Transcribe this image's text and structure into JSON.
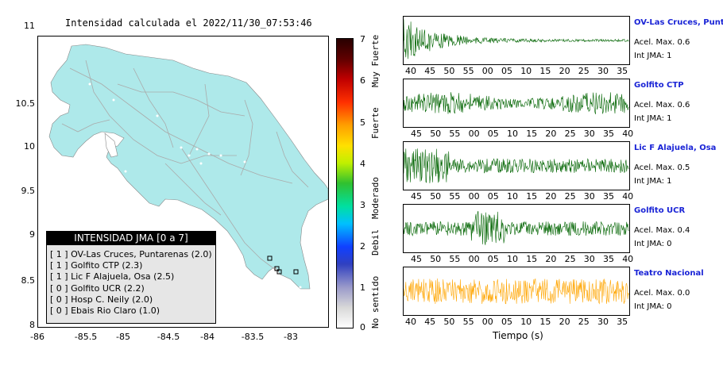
{
  "title": "Intensidad calculada el 2022/11/30_07:53:46",
  "map": {
    "lat_ticks": [
      "11",
      "10.5",
      "10",
      "9.5",
      "9",
      "8.5",
      "8"
    ],
    "lon_ticks": [
      "-86",
      "-85.5",
      "-85",
      "-84.5",
      "-84",
      "-83.5",
      "-83"
    ],
    "land_color": "#aee9ea",
    "road_color": "#aaaaaa",
    "stations": [
      {
        "name": "OV-Las Cruces, Puntarenas",
        "lon": -82.96,
        "lat": 8.62
      },
      {
        "name": "Golfito CTP",
        "lon": -83.17,
        "lat": 8.66
      },
      {
        "name": "Lic F Alajuela, Osa",
        "lon": -83.22,
        "lat": 8.71
      },
      {
        "name": "Golfito UCR",
        "lon": -83.2,
        "lat": 8.74
      },
      {
        "name": "Hosp C. Neily",
        "lon": -83.0,
        "lat": 8.64
      },
      {
        "name": "Ebais Rio Claro",
        "lon": -83.24,
        "lat": 8.82
      }
    ]
  },
  "colorbar": {
    "ticks": [
      "7",
      "6",
      "5",
      "4",
      "3",
      "2",
      "1",
      "0"
    ],
    "words": [
      "Muy Fuerte",
      "Fuerte",
      "Moderado",
      "Debil",
      "No sentido"
    ]
  },
  "legend": {
    "title": "INTENSIDAD JMA [0 a 7]",
    "rows": [
      "[ 1 ]  OV-Las Cruces, Puntarenas (2.0)",
      "[ 1 ]  Golfito CTP (2.3)",
      "[ 1 ]  Lic F Alajuela, Osa (2.5)",
      "[ 0 ]  Golfito UCR (2.2)",
      "[ 0 ]  Hosp C. Neily (2.0)",
      "[ 0 ]  Ebais Rio Claro (1.0)"
    ]
  },
  "traces": [
    {
      "name": "OV-Las Cruces, Puntar",
      "acel": "Acel. Max. 0.6",
      "int": "Int JMA: 1",
      "color": "#006400",
      "ticks": [
        "40",
        "45",
        "50",
        "55",
        "00",
        "05",
        "10",
        "15",
        "20",
        "25",
        "30",
        "35"
      ],
      "shape": "decay"
    },
    {
      "name": "Golfito CTP",
      "acel": "Acel. Max. 0.6",
      "int": "Int JMA: 1",
      "color": "#006400",
      "ticks": [
        "45",
        "50",
        "55",
        "00",
        "05",
        "10",
        "15",
        "20",
        "25",
        "30",
        "35",
        "40"
      ],
      "shape": "steady"
    },
    {
      "name": "Lic F Alajuela, Osa",
      "acel": "Acel. Max. 0.5",
      "int": "Int JMA: 1",
      "color": "#006400",
      "ticks": [
        "45",
        "50",
        "55",
        "00",
        "05",
        "10",
        "15",
        "20",
        "25",
        "30",
        "35",
        "40"
      ],
      "shape": "earlyburst"
    },
    {
      "name": "Golfito UCR",
      "acel": "Acel. Max. 0.4",
      "int": "Int JMA: 0",
      "color": "#006400",
      "ticks": [
        "45",
        "50",
        "55",
        "00",
        "05",
        "10",
        "15",
        "20",
        "25",
        "30",
        "35",
        "40"
      ],
      "shape": "midburst"
    },
    {
      "name": "Teatro Nacional",
      "acel": "Acel. Max. 0.0",
      "int": "Int JMA: 0",
      "color": "#ffa500",
      "ticks": [
        "40",
        "45",
        "50",
        "55",
        "00",
        "05",
        "10",
        "15",
        "20",
        "25",
        "30",
        "35"
      ],
      "shape": "noise"
    }
  ],
  "x_axis_title": "Tiempo (s)"
}
